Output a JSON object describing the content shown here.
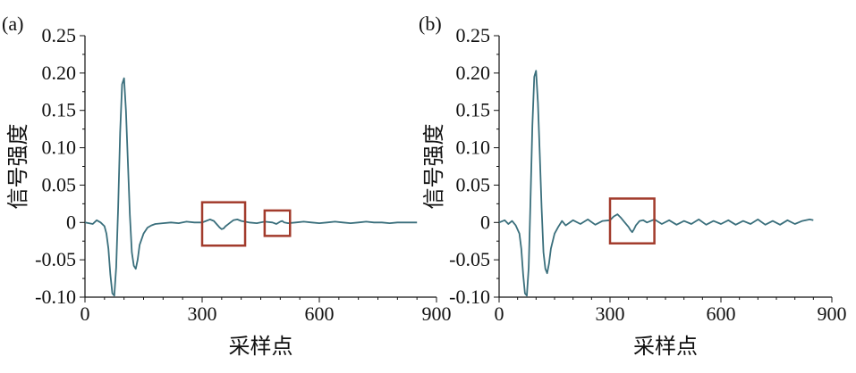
{
  "chart_data": [
    {
      "type": "line",
      "panel_label": "(a)",
      "xlabel": "采样点",
      "ylabel": "信号强度",
      "xlim": [
        0,
        900
      ],
      "ylim": [
        -0.1,
        0.25
      ],
      "xticks": [
        "0",
        "300",
        "600",
        "900"
      ],
      "yticks": [
        "-0.10",
        "-0.05",
        "0",
        "0.05",
        "0.10",
        "0.15",
        "0.20",
        "0.25"
      ],
      "line_color": "#3a6f7c",
      "highlight_color": "#a23b2c",
      "grid": false,
      "series": [
        {
          "x": [
            0,
            20,
            30,
            40,
            50,
            55,
            60,
            65,
            70,
            75,
            80,
            85,
            90,
            95,
            100,
            105,
            110,
            115,
            120,
            125,
            130,
            135,
            140,
            150,
            160,
            170,
            180,
            200,
            220,
            240,
            260,
            280,
            300,
            310,
            320,
            330,
            340,
            345,
            350,
            355,
            360,
            370,
            380,
            390,
            400,
            420,
            440,
            460,
            480,
            490,
            500,
            505,
            510,
            520,
            540,
            560,
            580,
            600,
            620,
            640,
            660,
            680,
            700,
            720,
            740,
            760,
            780,
            800,
            820,
            840,
            850
          ],
          "y": [
            0.0,
            -0.002,
            0.003,
            0.0,
            -0.005,
            -0.015,
            -0.035,
            -0.07,
            -0.095,
            -0.098,
            -0.06,
            0.02,
            0.12,
            0.185,
            0.193,
            0.15,
            0.08,
            0.01,
            -0.04,
            -0.058,
            -0.062,
            -0.05,
            -0.03,
            -0.015,
            -0.007,
            -0.004,
            -0.002,
            -0.001,
            0.0,
            -0.001,
            0.001,
            0.0,
            0.0,
            0.002,
            0.004,
            0.002,
            -0.004,
            -0.007,
            -0.009,
            -0.008,
            -0.005,
            -0.001,
            0.003,
            0.004,
            0.002,
            0.0,
            -0.001,
            0.001,
            0.0,
            -0.002,
            0.001,
            0.002,
            0.0,
            -0.001,
            0.0,
            0.001,
            0.0,
            -0.001,
            0.0,
            0.001,
            0.0,
            -0.001,
            0.0,
            0.001,
            0.0,
            0.0,
            -0.001,
            0.0,
            0.0,
            0.0,
            0.0
          ]
        }
      ],
      "highlights": [
        {
          "x": [
            300,
            410
          ],
          "y": [
            -0.031,
            0.027
          ]
        },
        {
          "x": [
            460,
            525
          ],
          "y": [
            -0.018,
            0.016
          ]
        }
      ]
    },
    {
      "type": "line",
      "panel_label": "(b)",
      "xlabel": "采样点",
      "ylabel": "信号强度",
      "xlim": [
        0,
        900
      ],
      "ylim": [
        -0.1,
        0.25
      ],
      "xticks": [
        "0",
        "300",
        "600",
        "900"
      ],
      "yticks": [
        "-0.10",
        "-0.05",
        "0",
        "0.05",
        "0.10",
        "0.15",
        "0.20",
        "0.25"
      ],
      "line_color": "#3a6f7c",
      "highlight_color": "#a23b2c",
      "grid": false,
      "series": [
        {
          "x": [
            0,
            15,
            25,
            35,
            45,
            55,
            60,
            65,
            70,
            75,
            80,
            85,
            90,
            95,
            100,
            105,
            110,
            115,
            120,
            125,
            130,
            135,
            140,
            150,
            160,
            170,
            180,
            200,
            220,
            240,
            260,
            280,
            300,
            310,
            320,
            330,
            340,
            350,
            355,
            360,
            365,
            370,
            380,
            390,
            400,
            420,
            440,
            460,
            480,
            500,
            520,
            540,
            560,
            580,
            600,
            620,
            640,
            660,
            680,
            700,
            720,
            740,
            760,
            780,
            800,
            820,
            840,
            850
          ],
          "y": [
            0.0,
            0.003,
            -0.002,
            0.002,
            -0.004,
            -0.015,
            -0.035,
            -0.07,
            -0.095,
            -0.098,
            -0.06,
            0.03,
            0.13,
            0.195,
            0.203,
            0.16,
            0.09,
            0.02,
            -0.04,
            -0.062,
            -0.068,
            -0.055,
            -0.035,
            -0.015,
            -0.006,
            0.002,
            -0.004,
            0.003,
            -0.002,
            0.004,
            -0.003,
            0.002,
            0.003,
            0.008,
            0.011,
            0.006,
            0.0,
            -0.006,
            -0.01,
            -0.013,
            -0.009,
            -0.004,
            0.002,
            0.003,
            0.0,
            0.004,
            -0.002,
            0.003,
            -0.003,
            0.002,
            -0.002,
            0.004,
            -0.003,
            0.002,
            -0.002,
            0.003,
            -0.003,
            0.002,
            -0.002,
            0.004,
            -0.003,
            0.002,
            -0.003,
            0.003,
            -0.002,
            0.002,
            0.004,
            0.003
          ]
        }
      ],
      "highlights": [
        {
          "x": [
            300,
            420
          ],
          "y": [
            -0.028,
            0.032
          ]
        }
      ]
    }
  ]
}
